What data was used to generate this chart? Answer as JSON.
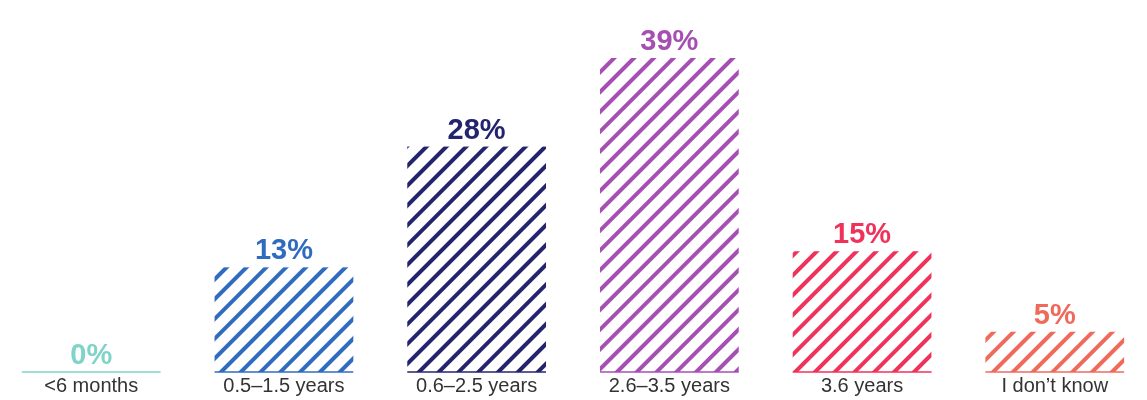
{
  "chart_data": {
    "type": "bar",
    "categories": [
      "<6 months",
      "0.5–1.5 years",
      "0.6–2.5 years",
      "2.6–3.5 years",
      "3.6 years",
      "I don’t know"
    ],
    "values": [
      0,
      13,
      28,
      39,
      15,
      5
    ],
    "colors": [
      "#7fd3c8",
      "#2f6cc0",
      "#24246e",
      "#a64fb3",
      "#f0325a",
      "#f06a5c"
    ],
    "data_labels": true,
    "value_labels": [
      "0%",
      "13%",
      "28%",
      "39%",
      "15%",
      "5%"
    ]
  }
}
